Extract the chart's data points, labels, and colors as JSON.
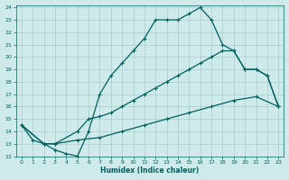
{
  "xlabel": "Humidex (Indice chaleur)",
  "xlim": [
    -0.5,
    23.5
  ],
  "ylim": [
    12,
    24.2
  ],
  "xticks": [
    0,
    1,
    2,
    3,
    4,
    5,
    6,
    7,
    8,
    9,
    10,
    11,
    12,
    13,
    14,
    15,
    16,
    17,
    18,
    19,
    20,
    21,
    22,
    23
  ],
  "yticks": [
    12,
    13,
    14,
    15,
    16,
    17,
    18,
    19,
    20,
    21,
    22,
    23,
    24
  ],
  "bg_color": "#ceeaea",
  "grid_color": "#aacccc",
  "line_color": "#006060",
  "line1_x": [
    0,
    1,
    2,
    3,
    4,
    5,
    6,
    7,
    8,
    9,
    10,
    11,
    12,
    13,
    14,
    15,
    16,
    17,
    18,
    19,
    20,
    21,
    22,
    23
  ],
  "line1_y": [
    14.5,
    13.3,
    13.0,
    12.5,
    12.2,
    12.0,
    14.0,
    17.0,
    18.5,
    19.5,
    20.5,
    21.5,
    23.0,
    23.0,
    23.0,
    23.5,
    24.0,
    23.0,
    21.0,
    20.5,
    19.0,
    19.0,
    18.5,
    16.0
  ],
  "line2_x": [
    0,
    2,
    3,
    5,
    6,
    7,
    8,
    9,
    10,
    11,
    12,
    13,
    14,
    15,
    16,
    17,
    18,
    19,
    20,
    21,
    22,
    23
  ],
  "line2_y": [
    14.5,
    13.0,
    13.0,
    14.0,
    15.0,
    15.2,
    15.5,
    16.0,
    16.5,
    17.0,
    17.5,
    18.0,
    18.5,
    19.0,
    19.5,
    20.0,
    20.5,
    20.5,
    19.0,
    19.0,
    18.5,
    16.0
  ],
  "line3_x": [
    0,
    2,
    3,
    5,
    7,
    9,
    11,
    13,
    15,
    17,
    19,
    21,
    23
  ],
  "line3_y": [
    14.5,
    13.0,
    13.0,
    13.3,
    13.5,
    14.0,
    14.5,
    15.0,
    15.5,
    16.0,
    16.5,
    16.8,
    16.0
  ]
}
